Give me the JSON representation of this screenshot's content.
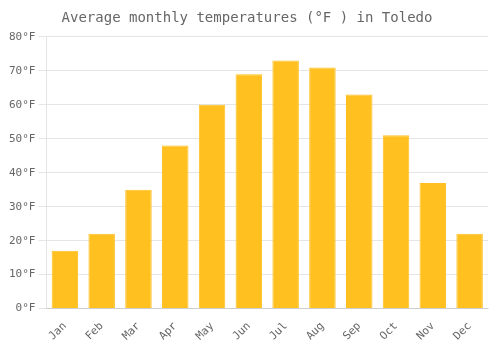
{
  "chart_data": {
    "type": "bar",
    "title": "Average monthly temperatures (°F ) in Toledo",
    "categories": [
      "Jan",
      "Feb",
      "Mar",
      "Apr",
      "May",
      "Jun",
      "Jul",
      "Aug",
      "Sep",
      "Oct",
      "Nov",
      "Dec"
    ],
    "values": [
      17,
      22,
      35,
      48,
      60,
      69,
      73,
      71,
      63,
      51,
      37,
      22
    ],
    "color": "#FFC020",
    "ylim": [
      0,
      80
    ],
    "yticks": [
      {
        "value": 0,
        "label": "0°F"
      },
      {
        "value": 10,
        "label": "10°F"
      },
      {
        "value": 20,
        "label": "20°F"
      },
      {
        "value": 30,
        "label": "30°F"
      },
      {
        "value": 40,
        "label": "40°F"
      },
      {
        "value": 50,
        "label": "50°F"
      },
      {
        "value": 60,
        "label": "60°F"
      },
      {
        "value": 70,
        "label": "70°F"
      },
      {
        "value": 80,
        "label": "80°F"
      }
    ],
    "grid": true
  }
}
